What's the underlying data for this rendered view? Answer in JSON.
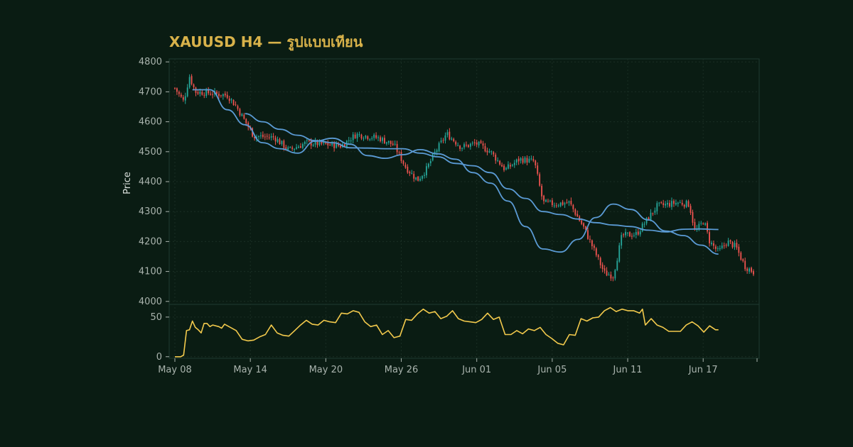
{
  "chart_data": {
    "type": "candlestick",
    "title": "XAUUSD H4 — รูปแบบเทียน",
    "ylabel": "Price",
    "price_panel": {
      "ylim": [
        3990,
        4810
      ],
      "yticks": [
        4000,
        4100,
        4200,
        4300,
        4400,
        4500,
        4600,
        4700,
        4800
      ]
    },
    "indicator_panel": {
      "ylim": [
        -2,
        66
      ],
      "yticks": [
        0,
        50
      ],
      "color": "#f2c94c"
    },
    "x_range": [
      "May 08",
      "Jun 23"
    ],
    "x_tick_labels": [
      "May 08",
      "May 14",
      "May 20",
      "May 26",
      "Jun 01",
      "Jun 05",
      "Jun 11",
      "Jun 17"
    ],
    "x_tick_day_index": [
      0,
      6,
      12,
      18,
      24,
      30,
      36,
      42
    ],
    "candles_per_day": 6,
    "colors": {
      "up": "#26a69a",
      "down": "#ef5350",
      "ma": "#5b9bd5",
      "grid": "#1a2e24"
    },
    "ohlc_series": {
      "anchors": [
        [
          0,
          4712
        ],
        [
          6,
          4668
        ],
        [
          10,
          4752
        ],
        [
          14,
          4700
        ],
        [
          24,
          4696
        ],
        [
          36,
          4688
        ],
        [
          42,
          4652
        ],
        [
          54,
          4552
        ],
        [
          68,
          4548
        ],
        [
          78,
          4505
        ],
        [
          90,
          4530
        ],
        [
          102,
          4525
        ],
        [
          114,
          4520
        ],
        [
          124,
          4558
        ],
        [
          140,
          4545
        ],
        [
          150,
          4522
        ],
        [
          158,
          4448
        ],
        [
          166,
          4405
        ],
        [
          172,
          4440
        ],
        [
          178,
          4497
        ],
        [
          186,
          4560
        ],
        [
          196,
          4515
        ],
        [
          206,
          4528
        ],
        [
          216,
          4500
        ],
        [
          226,
          4440
        ],
        [
          236,
          4475
        ],
        [
          246,
          4468
        ],
        [
          252,
          4330
        ],
        [
          260,
          4325
        ],
        [
          270,
          4330
        ],
        [
          280,
          4245
        ],
        [
          294,
          4095
        ],
        [
          300,
          4085
        ],
        [
          306,
          4220
        ],
        [
          316,
          4225
        ],
        [
          330,
          4318
        ],
        [
          344,
          4330
        ],
        [
          352,
          4325
        ],
        [
          356,
          4232
        ],
        [
          362,
          4270
        ],
        [
          366,
          4200
        ],
        [
          372,
          4165
        ],
        [
          378,
          4200
        ],
        [
          384,
          4182
        ],
        [
          390,
          4118
        ],
        [
          396,
          4098
        ]
      ]
    },
    "ma_series": [
      {
        "points": [
          [
            12,
            4707
          ],
          [
            24,
            4707
          ],
          [
            36,
            4640
          ],
          [
            48,
            4590
          ],
          [
            60,
            4530
          ],
          [
            72,
            4510
          ],
          [
            84,
            4495
          ],
          [
            96,
            4535
          ],
          [
            108,
            4545
          ],
          [
            120,
            4525
          ],
          [
            132,
            4487
          ],
          [
            144,
            4478
          ],
          [
            156,
            4490
          ],
          [
            168,
            4507
          ],
          [
            180,
            4493
          ],
          [
            192,
            4475
          ],
          [
            204,
            4430
          ],
          [
            216,
            4395
          ],
          [
            228,
            4335
          ],
          [
            240,
            4250
          ],
          [
            252,
            4175
          ],
          [
            264,
            4165
          ],
          [
            276,
            4207
          ],
          [
            288,
            4280
          ],
          [
            300,
            4325
          ],
          [
            312,
            4307
          ],
          [
            324,
            4272
          ],
          [
            336,
            4235
          ],
          [
            348,
            4220
          ],
          [
            360,
            4188
          ],
          [
            372,
            4158
          ]
        ]
      },
      {
        "points": [
          [
            48,
            4627
          ],
          [
            60,
            4600
          ],
          [
            72,
            4575
          ],
          [
            84,
            4555
          ],
          [
            96,
            4537
          ],
          [
            108,
            4530
          ],
          [
            120,
            4513
          ],
          [
            132,
            4512
          ],
          [
            144,
            4510
          ],
          [
            156,
            4510
          ],
          [
            168,
            4495
          ],
          [
            180,
            4483
          ],
          [
            192,
            4461
          ],
          [
            204,
            4453
          ],
          [
            216,
            4430
          ],
          [
            228,
            4376
          ],
          [
            240,
            4344
          ],
          [
            252,
            4300
          ],
          [
            264,
            4290
          ],
          [
            276,
            4275
          ],
          [
            288,
            4263
          ],
          [
            300,
            4255
          ],
          [
            312,
            4250
          ],
          [
            324,
            4238
          ],
          [
            336,
            4232
          ],
          [
            348,
            4241
          ],
          [
            360,
            4242
          ],
          [
            372,
            4240
          ]
        ]
      }
    ],
    "indicator_series": {
      "anchors": [
        [
          0,
          0
        ],
        [
          4,
          0
        ],
        [
          6,
          2
        ],
        [
          8,
          33
        ],
        [
          10,
          34
        ],
        [
          12,
          45
        ],
        [
          14,
          37
        ],
        [
          16,
          34
        ],
        [
          18,
          30
        ],
        [
          20,
          42
        ],
        [
          22,
          42
        ],
        [
          24,
          38
        ],
        [
          26,
          40
        ],
        [
          30,
          38
        ],
        [
          32,
          36
        ],
        [
          34,
          41
        ],
        [
          36,
          39
        ],
        [
          38,
          37
        ],
        [
          42,
          33
        ],
        [
          46,
          22
        ],
        [
          50,
          20
        ],
        [
          54,
          21
        ],
        [
          58,
          25
        ],
        [
          62,
          28
        ],
        [
          66,
          40
        ],
        [
          70,
          30
        ],
        [
          74,
          27
        ],
        [
          78,
          26
        ],
        [
          82,
          33
        ],
        [
          86,
          40
        ],
        [
          90,
          46
        ],
        [
          94,
          41
        ],
        [
          98,
          40
        ],
        [
          102,
          46
        ],
        [
          106,
          44
        ],
        [
          110,
          43
        ],
        [
          114,
          55
        ],
        [
          118,
          54
        ],
        [
          122,
          58
        ],
        [
          126,
          56
        ],
        [
          130,
          44
        ],
        [
          134,
          38
        ],
        [
          138,
          40
        ],
        [
          142,
          28
        ],
        [
          146,
          33
        ],
        [
          150,
          24
        ],
        [
          154,
          26
        ],
        [
          158,
          47
        ],
        [
          162,
          46
        ],
        [
          166,
          54
        ],
        [
          170,
          60
        ],
        [
          174,
          55
        ],
        [
          178,
          57
        ],
        [
          182,
          48
        ],
        [
          186,
          51
        ],
        [
          190,
          58
        ],
        [
          194,
          48
        ],
        [
          198,
          45
        ],
        [
          202,
          44
        ],
        [
          206,
          43
        ],
        [
          210,
          47
        ],
        [
          214,
          55
        ],
        [
          218,
          47
        ],
        [
          222,
          50
        ],
        [
          226,
          28
        ],
        [
          230,
          28
        ],
        [
          234,
          33
        ],
        [
          238,
          29
        ],
        [
          242,
          35
        ],
        [
          246,
          33
        ],
        [
          250,
          37
        ],
        [
          254,
          28
        ],
        [
          258,
          23
        ],
        [
          262,
          17
        ],
        [
          266,
          15
        ],
        [
          270,
          28
        ],
        [
          274,
          27
        ],
        [
          278,
          48
        ],
        [
          282,
          45
        ],
        [
          286,
          49
        ],
        [
          290,
          50
        ],
        [
          294,
          58
        ],
        [
          298,
          62
        ],
        [
          302,
          57
        ],
        [
          306,
          60
        ],
        [
          310,
          58
        ],
        [
          314,
          58
        ],
        [
          318,
          55
        ],
        [
          320,
          60
        ],
        [
          322,
          40
        ],
        [
          326,
          48
        ],
        [
          330,
          40
        ],
        [
          334,
          37
        ],
        [
          338,
          32
        ],
        [
          342,
          32
        ],
        [
          346,
          32
        ],
        [
          350,
          40
        ],
        [
          354,
          44
        ],
        [
          358,
          39
        ],
        [
          362,
          31
        ],
        [
          366,
          39
        ],
        [
          370,
          34
        ],
        [
          372,
          34
        ]
      ]
    }
  }
}
